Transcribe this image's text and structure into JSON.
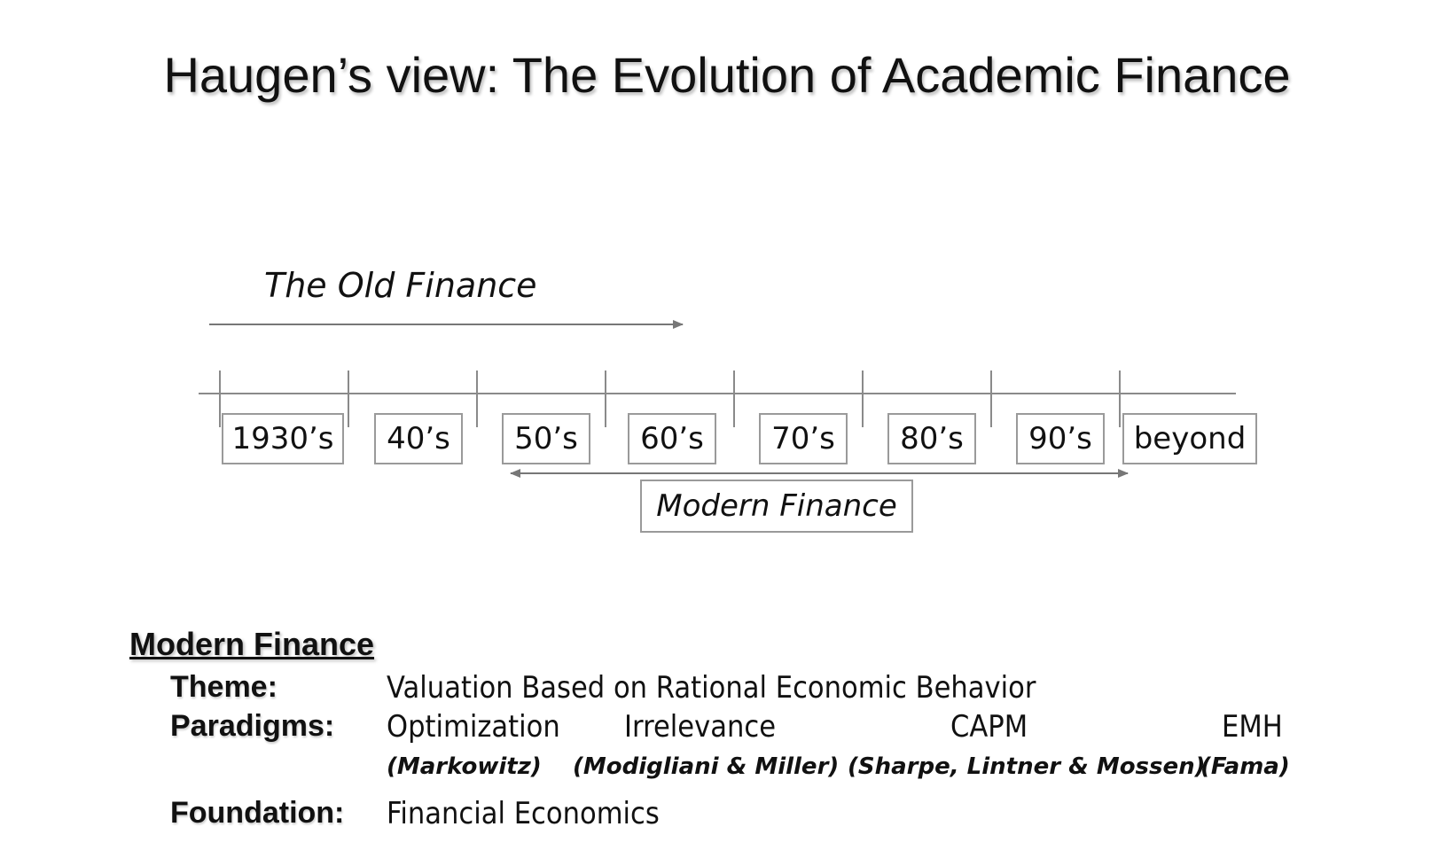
{
  "title": "Haugen’s view: The Evolution of Academic Finance",
  "timeline": {
    "old_finance_label": "The Old Finance",
    "decades": [
      "1930’s",
      "40’s",
      "50’s",
      "60’s",
      "70’s",
      "80’s",
      "90’s",
      "beyond"
    ],
    "modern_finance_label": "Modern Finance"
  },
  "section": {
    "heading": "Modern Finance",
    "theme_label": "Theme:",
    "theme_value": "Valuation Based on Rational Economic Behavior",
    "paradigms_label": "Paradigms:",
    "paradigms": [
      {
        "name": "Optimization",
        "author": "(Markowitz)"
      },
      {
        "name": "Irrelevance",
        "author": "(Modigliani & Miller)"
      },
      {
        "name": "CAPM",
        "author": "(Sharpe, Lintner & Mossen)"
      },
      {
        "name": "EMH",
        "author": "(Fama)"
      }
    ],
    "foundation_label": "Foundation:",
    "foundation_value": "Financial Economics"
  }
}
